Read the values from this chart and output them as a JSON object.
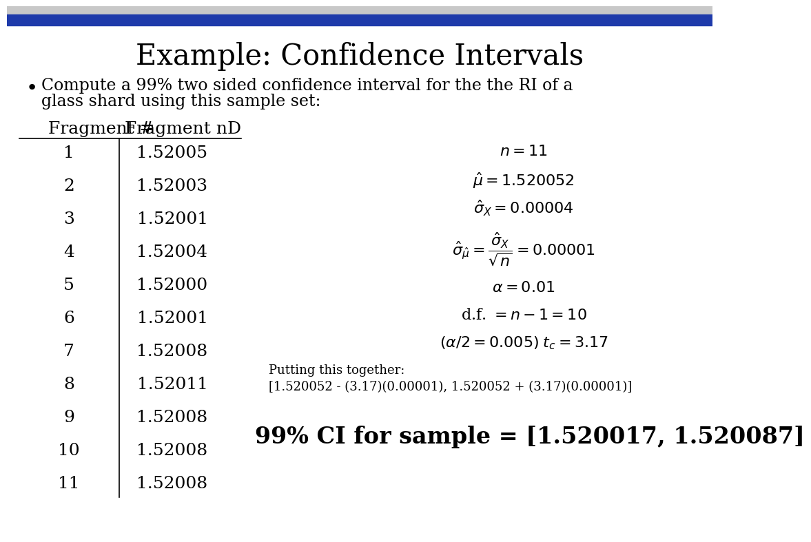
{
  "title": "Example: Confidence Intervals",
  "bullet_line1": "Compute a 99% two sided confidence interval for the the RI of a",
  "bullet_line2": "glass shard using this sample set:",
  "table_headers": [
    "Fragment #",
    "Fragment nD"
  ],
  "table_data": [
    [
      1,
      "1.52005"
    ],
    [
      2,
      "1.52003"
    ],
    [
      3,
      "1.52001"
    ],
    [
      4,
      "1.52004"
    ],
    [
      5,
      "1.52000"
    ],
    [
      6,
      "1.52001"
    ],
    [
      7,
      "1.52008"
    ],
    [
      8,
      "1.52011"
    ],
    [
      9,
      "1.52008"
    ],
    [
      10,
      "1.52008"
    ],
    [
      11,
      "1.52008"
    ]
  ],
  "stats": [
    "$n = 11$",
    "$\\hat{\\mu} = 1.520052$",
    "$\\hat{\\sigma}_X = 0.00004$",
    "$\\hat{\\sigma}_{\\hat{\\mu}} = \\dfrac{\\hat{\\sigma}_X}{\\sqrt{n}} = 0.00001$",
    "$\\alpha = 0.01$",
    "d.f. $= n - 1 = 10$",
    "$(\\alpha/2 = 0.005)\\; t_c = 3.17$"
  ],
  "putting_together_label": "Putting this together:",
  "putting_together_eq": "[1.520052 - (3.17)(0.00001), 1.520052 + (3.17)(0.00001)]",
  "ci_result": "99% CI for sample = [1.520017, 1.520087]",
  "bg_color": "#ffffff",
  "text_color": "#000000",
  "title_fontsize": 30,
  "body_fontsize": 17,
  "table_fontsize": 18,
  "stats_fontsize": 16,
  "putting_fontsize": 13,
  "ci_result_fontsize": 24
}
